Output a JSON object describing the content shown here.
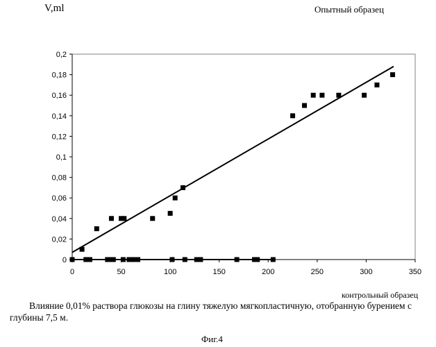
{
  "header": {
    "ylabel": "V,ml",
    "series_label": "Опытный образец"
  },
  "footer": {
    "xlabel": "контрольный образец",
    "caption": "Влияние 0,01% раствора глюкозы на глину тяжелую мягкопластичную, отобранную бурением с глубины 7,5 м.",
    "figure": "Фиг.4"
  },
  "chart_data": {
    "type": "scatter",
    "title": "",
    "xlabel": "контрольный образец",
    "ylabel": "V,ml",
    "xlim": [
      0,
      350
    ],
    "ylim": [
      0,
      0.2
    ],
    "x_ticks": [
      0,
      50,
      100,
      150,
      200,
      250,
      300,
      350
    ],
    "y_ticks": [
      0,
      0.02,
      0.04,
      0.06,
      0.08,
      0.1,
      0.12,
      0.14,
      0.16,
      0.18,
      0.2
    ],
    "x_tick_labels": [
      "0",
      "50",
      "100",
      "150",
      "200",
      "250",
      "300",
      "350"
    ],
    "y_tick_labels": [
      "0",
      "0,02",
      "0,04",
      "0,06",
      "0,08",
      "0,1",
      "0,12",
      "0,14",
      "0,16",
      "0,18",
      "0,2"
    ],
    "grid": false,
    "series": [
      {
        "name": "Опытный образец",
        "marker": "square",
        "x": [
          10,
          25,
          40,
          50,
          53,
          82,
          100,
          105,
          113,
          225,
          237,
          246,
          255,
          272,
          298,
          311,
          327
        ],
        "y": [
          0.01,
          0.03,
          0.04,
          0.04,
          0.04,
          0.04,
          0.045,
          0.06,
          0.07,
          0.14,
          0.15,
          0.16,
          0.16,
          0.16,
          0.16,
          0.17,
          0.18
        ]
      },
      {
        "name": "контрольный образец",
        "marker": "square",
        "x": [
          0,
          14,
          16,
          18,
          36,
          39,
          42,
          52,
          58,
          62,
          67,
          102,
          115,
          127,
          131,
          168,
          186,
          189,
          205
        ],
        "y": [
          0,
          0,
          0,
          0,
          0,
          0,
          0,
          0,
          0,
          0,
          0,
          0,
          0,
          0,
          0,
          0,
          0,
          0,
          0
        ]
      }
    ],
    "trendlines": [
      {
        "name": "linear-trend-experimental",
        "x": [
          0,
          328
        ],
        "y": [
          0.007,
          0.188
        ]
      },
      {
        "name": "control-baseline",
        "x": [
          0,
          205
        ],
        "y": [
          0,
          0
        ]
      }
    ]
  }
}
